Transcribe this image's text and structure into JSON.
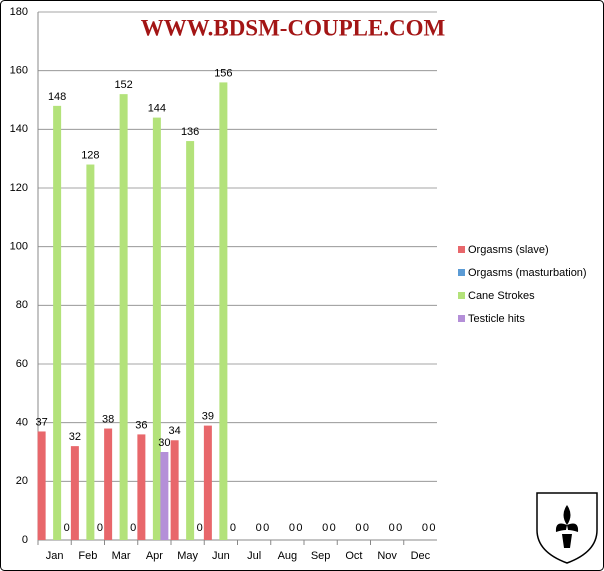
{
  "chart_data": {
    "type": "bar",
    "title": "WWW.BDSM-COUPLE.COM",
    "categories": [
      "Jan",
      "Feb",
      "Mar",
      "Apr",
      "May",
      "Jun",
      "Jul",
      "Aug",
      "Sep",
      "Oct",
      "Nov",
      "Dec"
    ],
    "series": [
      {
        "name": "Orgasms (slave)",
        "color": "#e8676b",
        "values": [
          37,
          32,
          38,
          36,
          34,
          39,
          null,
          null,
          null,
          null,
          null,
          null
        ]
      },
      {
        "name": "Orgasms (masturbation)",
        "color": "#5b9bd5",
        "values": [
          null,
          null,
          null,
          null,
          null,
          null,
          null,
          null,
          null,
          null,
          null,
          null
        ]
      },
      {
        "name": "Cane Strokes",
        "color": "#b3e27a",
        "values": [
          148,
          128,
          152,
          144,
          136,
          156,
          0,
          0,
          0,
          0,
          0,
          0
        ]
      },
      {
        "name": "Testicle hits",
        "color": "#b48fd8",
        "values": [
          0,
          0,
          0,
          30,
          0,
          0,
          0,
          0,
          0,
          0,
          0,
          0
        ]
      }
    ],
    "ylim": [
      0,
      180
    ],
    "yticks": [
      0,
      20,
      40,
      60,
      80,
      100,
      120,
      140,
      160,
      180
    ],
    "grid": true,
    "legend": "right"
  }
}
